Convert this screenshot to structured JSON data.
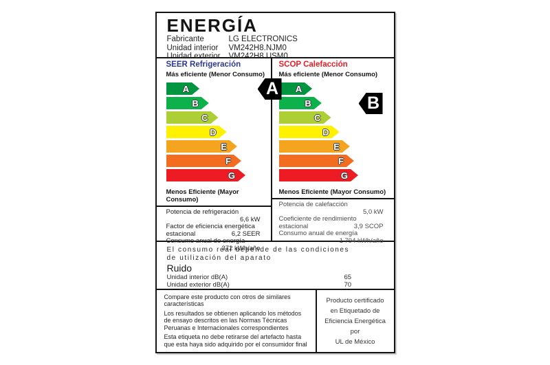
{
  "label": {
    "title": "ENERGÍA",
    "product_info": [
      {
        "label": "Fabricante",
        "value": "LG ELECTRONICS"
      },
      {
        "label": "Unidad interior",
        "value": "VM242H8.NJM0"
      },
      {
        "label": "Unidad exterior",
        "value": "VM242H8.USM0"
      }
    ],
    "scale": {
      "grades": [
        {
          "letter": "A",
          "color": "#009640",
          "width_pct": 32
        },
        {
          "letter": "B",
          "color": "#0DB14B",
          "width_pct": 41
        },
        {
          "letter": "C",
          "color": "#AECE36",
          "width_pct": 50
        },
        {
          "letter": "D",
          "color": "#FFF200",
          "width_pct": 58
        },
        {
          "letter": "E",
          "color": "#F5A41F",
          "width_pct": 68
        },
        {
          "letter": "F",
          "color": "#F36D21",
          "width_pct": 72
        },
        {
          "letter": "G",
          "color": "#ED1B24",
          "width_pct": 76
        }
      ],
      "letter_color": "#FFFFFF",
      "indicator_background": "#000000"
    },
    "columns": [
      {
        "id": "seer",
        "heading": "SEER Refrigeración",
        "heading_color": "#2B3990",
        "more_efficient": "Más eficiente (Menor Consumo)",
        "less_efficient": "Menos Eficiente (Mayor Consumo)",
        "rating": "A",
        "specs": [
          {
            "label": "Potencia de refrigeración",
            "value": "6,6 kW"
          },
          {
            "label": "Factor de eficiencia energética",
            "label2": "estacional",
            "value": "6,2 SEER"
          },
          {
            "label": "Consumo anual de energía",
            "value": "372 kWh/año"
          }
        ]
      },
      {
        "id": "scop",
        "heading": "SCOP Calefacción",
        "heading_color": "#ED1C24",
        "more_efficient": "Más eficiente (Menor Consumo)",
        "less_efficient": "Menos Eficiente (Mayor Consumo)",
        "rating": "B",
        "specs": [
          {
            "label": "Potencia de calefacción",
            "value": "5,0 kW"
          },
          {
            "label": "Coeficiente de rendimiento",
            "label2": "estacional",
            "value": "3,9 SCOP"
          },
          {
            "label": "Consumo anual de energía",
            "value": "1 794 kWh/año"
          }
        ]
      }
    ],
    "consumption_note": [
      "El consumo real depende de las condiciones",
      "de utilización del aparato"
    ],
    "noise": {
      "title": "Ruido",
      "rows": [
        {
          "label": "Unidad interior dB(A)",
          "value": "65"
        },
        {
          "label": "Unidad exterior dB(A)",
          "value": "70"
        }
      ]
    },
    "footer": {
      "paragraphs": [
        "Compare este producto con otros de similares características",
        "Los  resultados se obtienen aplicando los métodos de ensayo descritos en las Normas Técnicas Peruanas e Internacionales correspondientes",
        "Esta etiqueta no debe retirarse del artefacto hasta que esta haya sido adquirido por el consumidor final"
      ],
      "certification": [
        "Producto certificado",
        "en Etiquetado de",
        "Eficiencia Energética",
        "por",
        "UL de México"
      ]
    }
  }
}
